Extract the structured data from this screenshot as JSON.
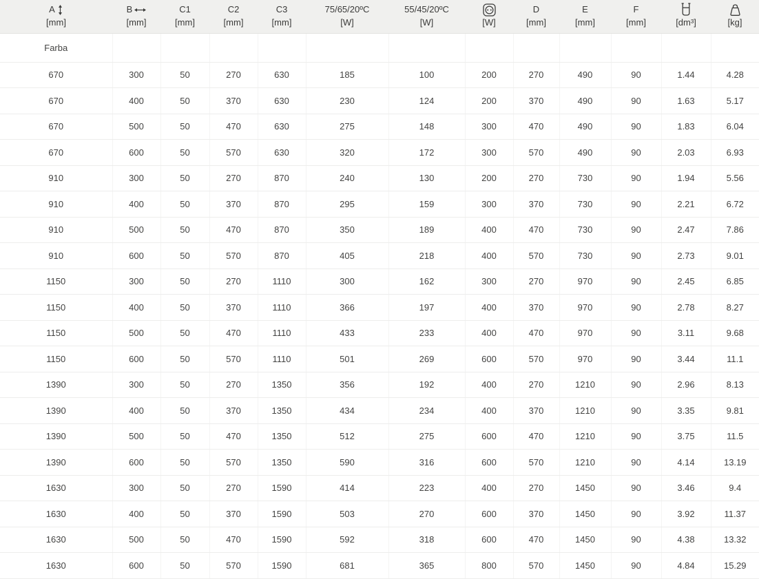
{
  "table": {
    "columns": [
      {
        "label": "A",
        "unit": "[mm]"
      },
      {
        "label": "B",
        "unit": "[mm]"
      },
      {
        "label": "C1",
        "unit": "[mm]"
      },
      {
        "label": "C2",
        "unit": "[mm]"
      },
      {
        "label": "C3",
        "unit": "[mm]"
      },
      {
        "label": "75/65/20ºC",
        "unit": "[W]"
      },
      {
        "label": "55/45/20ºC",
        "unit": "[W]"
      },
      {
        "label": "",
        "unit": "[W]"
      },
      {
        "label": "D",
        "unit": "[mm]"
      },
      {
        "label": "E",
        "unit": "[mm]"
      },
      {
        "label": "F",
        "unit": "[mm]"
      },
      {
        "label": "",
        "unit": "[dm³]"
      },
      {
        "label": "",
        "unit": "[kg]"
      }
    ],
    "icons": {
      "col_a": "height-double-arrow-icon",
      "col_b": "width-double-arrow-icon",
      "col_electric": "power-socket-icon",
      "col_volume": "water-volume-icon",
      "col_weight": "weight-icon"
    },
    "subheader": {
      "first_cell": "Farba"
    },
    "rows": [
      [
        "670",
        "300",
        "50",
        "270",
        "630",
        "185",
        "100",
        "200",
        "270",
        "490",
        "90",
        "1.44",
        "4.28"
      ],
      [
        "670",
        "400",
        "50",
        "370",
        "630",
        "230",
        "124",
        "200",
        "370",
        "490",
        "90",
        "1.63",
        "5.17"
      ],
      [
        "670",
        "500",
        "50",
        "470",
        "630",
        "275",
        "148",
        "300",
        "470",
        "490",
        "90",
        "1.83",
        "6.04"
      ],
      [
        "670",
        "600",
        "50",
        "570",
        "630",
        "320",
        "172",
        "300",
        "570",
        "490",
        "90",
        "2.03",
        "6.93"
      ],
      [
        "910",
        "300",
        "50",
        "270",
        "870",
        "240",
        "130",
        "200",
        "270",
        "730",
        "90",
        "1.94",
        "5.56"
      ],
      [
        "910",
        "400",
        "50",
        "370",
        "870",
        "295",
        "159",
        "300",
        "370",
        "730",
        "90",
        "2.21",
        "6.72"
      ],
      [
        "910",
        "500",
        "50",
        "470",
        "870",
        "350",
        "189",
        "400",
        "470",
        "730",
        "90",
        "2.47",
        "7.86"
      ],
      [
        "910",
        "600",
        "50",
        "570",
        "870",
        "405",
        "218",
        "400",
        "570",
        "730",
        "90",
        "2.73",
        "9.01"
      ],
      [
        "1150",
        "300",
        "50",
        "270",
        "1110",
        "300",
        "162",
        "300",
        "270",
        "970",
        "90",
        "2.45",
        "6.85"
      ],
      [
        "1150",
        "400",
        "50",
        "370",
        "1110",
        "366",
        "197",
        "400",
        "370",
        "970",
        "90",
        "2.78",
        "8.27"
      ],
      [
        "1150",
        "500",
        "50",
        "470",
        "1110",
        "433",
        "233",
        "400",
        "470",
        "970",
        "90",
        "3.11",
        "9.68"
      ],
      [
        "1150",
        "600",
        "50",
        "570",
        "1110",
        "501",
        "269",
        "600",
        "570",
        "970",
        "90",
        "3.44",
        "11.1"
      ],
      [
        "1390",
        "300",
        "50",
        "270",
        "1350",
        "356",
        "192",
        "400",
        "270",
        "1210",
        "90",
        "2.96",
        "8.13"
      ],
      [
        "1390",
        "400",
        "50",
        "370",
        "1350",
        "434",
        "234",
        "400",
        "370",
        "1210",
        "90",
        "3.35",
        "9.81"
      ],
      [
        "1390",
        "500",
        "50",
        "470",
        "1350",
        "512",
        "275",
        "600",
        "470",
        "1210",
        "90",
        "3.75",
        "11.5"
      ],
      [
        "1390",
        "600",
        "50",
        "570",
        "1350",
        "590",
        "316",
        "600",
        "570",
        "1210",
        "90",
        "4.14",
        "13.19"
      ],
      [
        "1630",
        "300",
        "50",
        "270",
        "1590",
        "414",
        "223",
        "400",
        "270",
        "1450",
        "90",
        "3.46",
        "9.4"
      ],
      [
        "1630",
        "400",
        "50",
        "370",
        "1590",
        "503",
        "270",
        "600",
        "370",
        "1450",
        "90",
        "3.92",
        "11.37"
      ],
      [
        "1630",
        "500",
        "50",
        "470",
        "1590",
        "592",
        "318",
        "600",
        "470",
        "1450",
        "90",
        "4.38",
        "13.32"
      ],
      [
        "1630",
        "600",
        "50",
        "570",
        "1590",
        "681",
        "365",
        "800",
        "570",
        "1450",
        "90",
        "4.84",
        "15.29"
      ]
    ]
  }
}
